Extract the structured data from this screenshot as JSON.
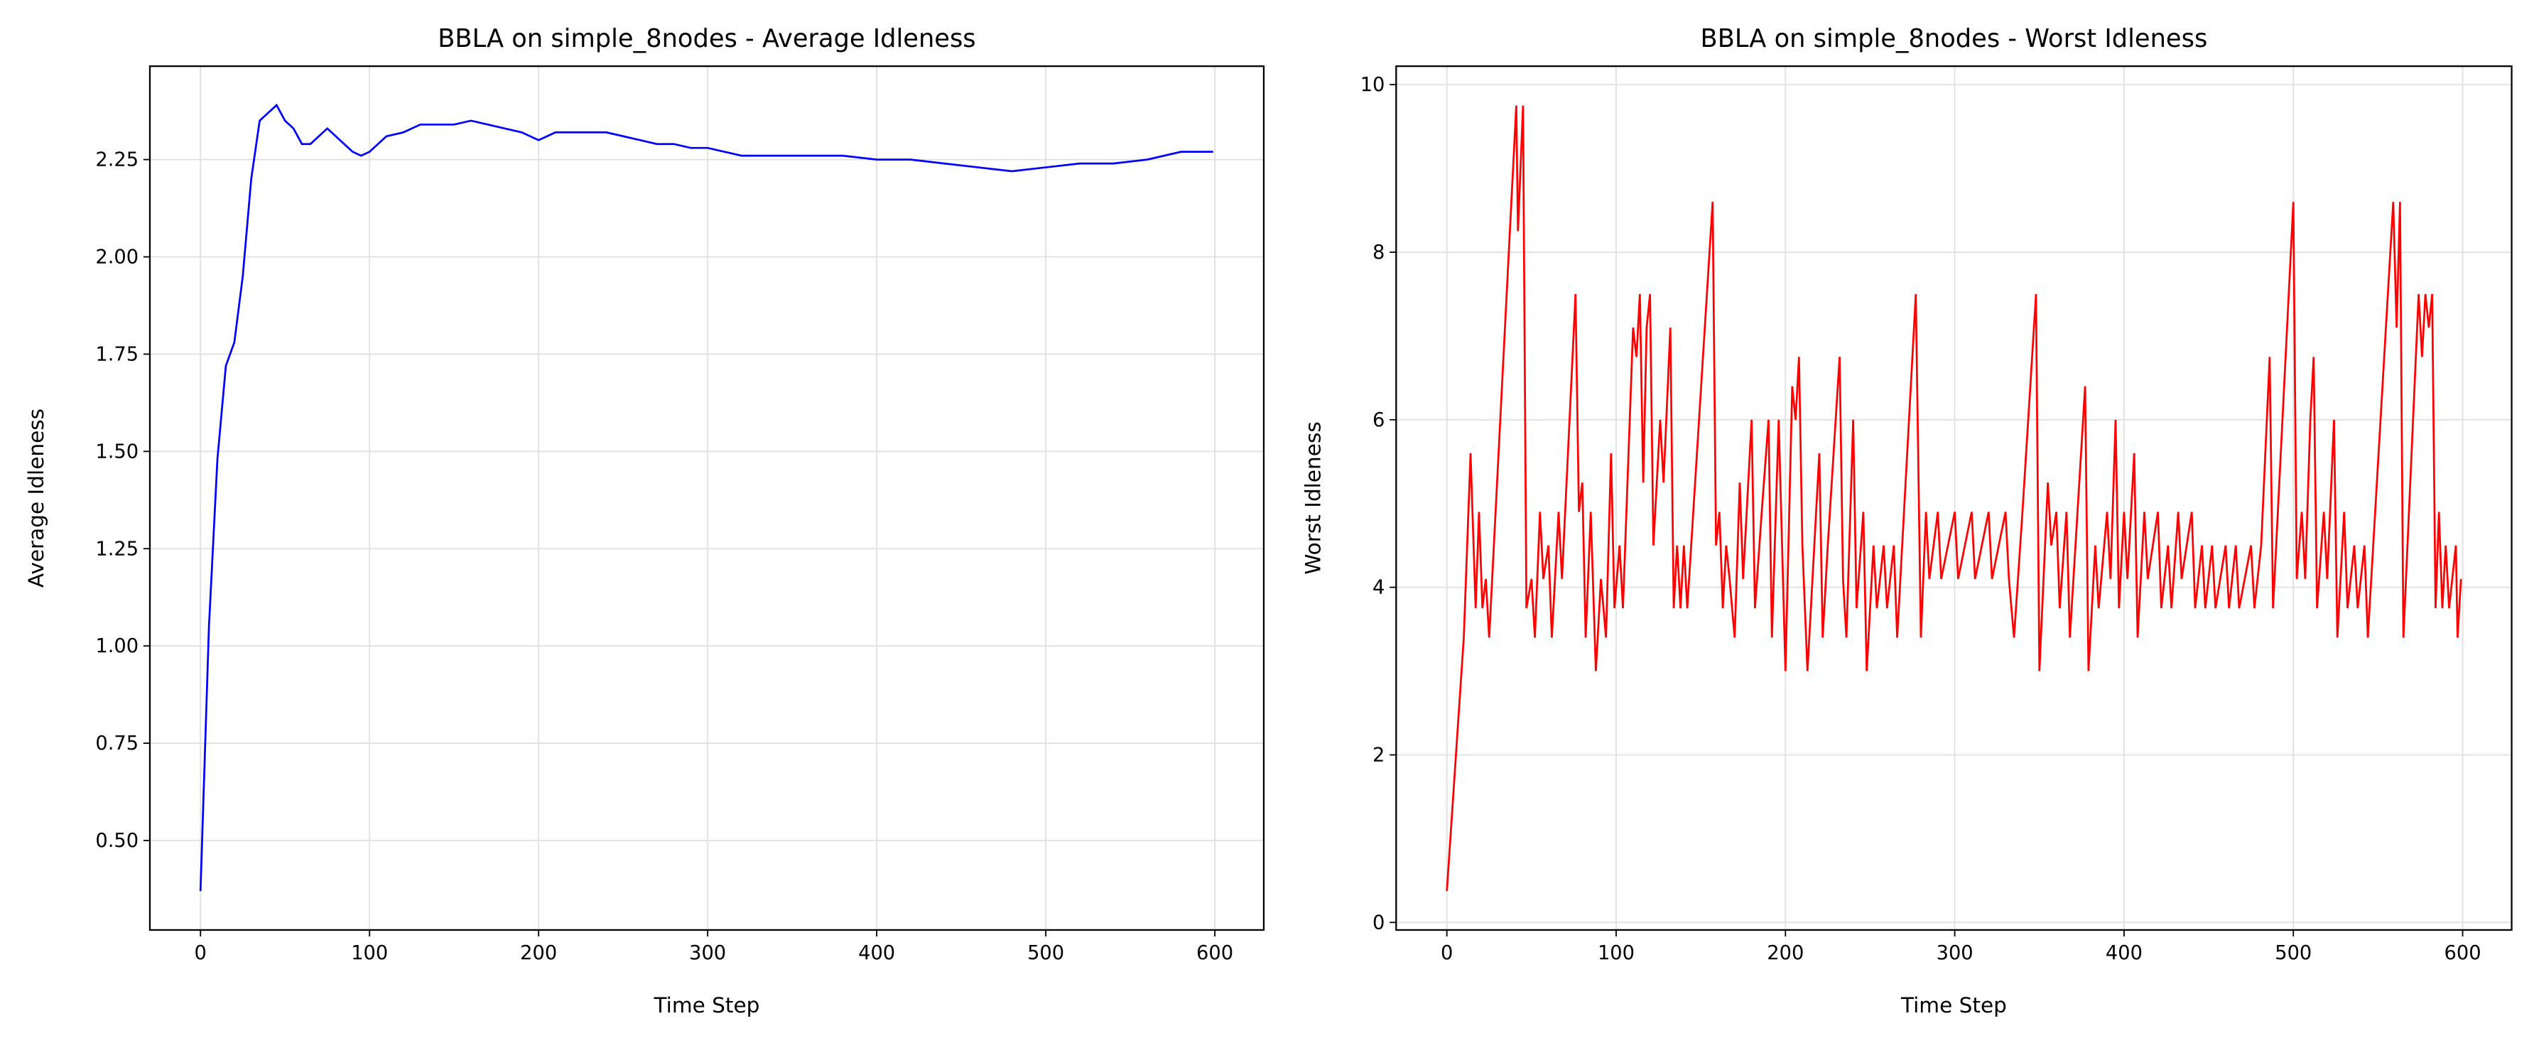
{
  "chart_data": [
    {
      "type": "line",
      "title": "BBLA on simple_8nodes - Average Idleness",
      "xlabel": "Time Step",
      "ylabel": "Average Idleness",
      "x": [
        0,
        5,
        10,
        15,
        20,
        25,
        30,
        35,
        40,
        45,
        50,
        55,
        60,
        65,
        70,
        75,
        80,
        85,
        90,
        95,
        100,
        110,
        120,
        130,
        140,
        150,
        160,
        170,
        180,
        190,
        200,
        210,
        220,
        230,
        240,
        250,
        260,
        270,
        280,
        290,
        300,
        320,
        340,
        360,
        380,
        400,
        420,
        440,
        460,
        480,
        500,
        520,
        540,
        560,
        580,
        599
      ],
      "series": [
        {
          "name": "Average Idleness",
          "color": "#0000ff",
          "values": [
            0.37,
            1.05,
            1.48,
            1.72,
            1.78,
            1.95,
            2.2,
            2.35,
            2.37,
            2.39,
            2.35,
            2.33,
            2.29,
            2.29,
            2.31,
            2.33,
            2.31,
            2.29,
            2.27,
            2.26,
            2.27,
            2.31,
            2.32,
            2.34,
            2.34,
            2.34,
            2.35,
            2.34,
            2.33,
            2.32,
            2.3,
            2.32,
            2.32,
            2.32,
            2.32,
            2.31,
            2.3,
            2.29,
            2.29,
            2.28,
            2.28,
            2.26,
            2.26,
            2.26,
            2.26,
            2.25,
            2.25,
            2.24,
            2.23,
            2.22,
            2.23,
            2.24,
            2.24,
            2.25,
            2.27,
            2.27
          ]
        }
      ],
      "xlim": [
        -29.95,
        628.95
      ],
      "xticks": [
        0,
        100,
        200,
        300,
        400,
        500,
        600
      ],
      "ylim": [
        0.27,
        2.49
      ],
      "yticks": [
        {
          "value": 0.5,
          "label": "0.50"
        },
        {
          "value": 0.75,
          "label": "0.75"
        },
        {
          "value": 1,
          "label": "1.00"
        },
        {
          "value": 1.25,
          "label": "1.25"
        },
        {
          "value": 1.5,
          "label": "1.50"
        },
        {
          "value": 1.75,
          "label": "1.75"
        },
        {
          "value": 2,
          "label": "2.00"
        },
        {
          "value": 2.25,
          "label": "2.25"
        }
      ],
      "grid": true
    },
    {
      "type": "line",
      "title": "BBLA on simple_8nodes - Worst Idleness",
      "xlabel": "Time Step",
      "ylabel": "Worst Idleness",
      "x": [
        0,
        10,
        14,
        17,
        19,
        21,
        23,
        25,
        41,
        42,
        45,
        47,
        50,
        52,
        55,
        57,
        60,
        62,
        66,
        68,
        76,
        78,
        80,
        82,
        85,
        88,
        91,
        94,
        97,
        99,
        102,
        104,
        110,
        112,
        114,
        116,
        118,
        120,
        122,
        126,
        128,
        132,
        134,
        136,
        138,
        140,
        142,
        157,
        159,
        161,
        163,
        165,
        167,
        170,
        173,
        175,
        180,
        182,
        186,
        190,
        192,
        196,
        200,
        204,
        206,
        208,
        210,
        213,
        220,
        222,
        225,
        232,
        234,
        236,
        240,
        242,
        246,
        248,
        252,
        254,
        258,
        260,
        264,
        266,
        277,
        280,
        283,
        285,
        290,
        292,
        300,
        302,
        310,
        312,
        320,
        322,
        330,
        332,
        335,
        340,
        348,
        350,
        355,
        357,
        360,
        362,
        366,
        368,
        377,
        379,
        383,
        385,
        390,
        392,
        395,
        397,
        400,
        402,
        406,
        408,
        412,
        414,
        420,
        422,
        426,
        428,
        432,
        434,
        440,
        442,
        446,
        448,
        452,
        454,
        460,
        462,
        466,
        468,
        475,
        477,
        481,
        486,
        488,
        500,
        502,
        505,
        507,
        510,
        512,
        514,
        518,
        520,
        524,
        526,
        530,
        532,
        536,
        538,
        542,
        544,
        559,
        561,
        563,
        565,
        574,
        576,
        578,
        580,
        582,
        584,
        586,
        588,
        590,
        592,
        596,
        597,
        599
      ],
      "series": [
        {
          "name": "Worst Idleness",
          "color": "#ff0000",
          "values": [
            0.375,
            3.4,
            5.6,
            3.75,
            4.9,
            3.75,
            4.1,
            3.4,
            9.75,
            8.25,
            9.75,
            3.75,
            4.1,
            3.4,
            4.9,
            4.1,
            4.5,
            3.4,
            4.9,
            4.1,
            7.5,
            4.9,
            5.25,
            3.4,
            4.9,
            3.0,
            4.1,
            3.4,
            5.6,
            3.75,
            4.5,
            3.75,
            7.1,
            6.75,
            7.5,
            5.25,
            7.1,
            7.5,
            4.5,
            6.0,
            5.25,
            7.1,
            3.75,
            4.5,
            3.75,
            4.5,
            3.75,
            8.6,
            4.5,
            4.9,
            3.75,
            4.5,
            4.1,
            3.4,
            5.25,
            4.1,
            6.0,
            3.75,
            4.9,
            6.0,
            3.4,
            6.0,
            3.0,
            6.4,
            6.0,
            6.75,
            4.5,
            3.0,
            5.6,
            3.4,
            4.5,
            6.75,
            4.1,
            3.4,
            6.0,
            3.75,
            4.9,
            3.0,
            4.5,
            3.75,
            4.5,
            3.75,
            4.5,
            3.4,
            7.5,
            3.4,
            4.9,
            4.1,
            4.9,
            4.1,
            4.9,
            4.1,
            4.9,
            4.1,
            4.9,
            4.1,
            4.9,
            4.1,
            3.4,
            4.9,
            7.5,
            3.0,
            5.25,
            4.5,
            4.9,
            3.75,
            4.9,
            3.4,
            6.4,
            3.0,
            4.5,
            3.75,
            4.9,
            4.1,
            6.0,
            3.75,
            4.9,
            4.1,
            5.6,
            3.4,
            4.9,
            4.1,
            4.9,
            3.75,
            4.5,
            3.75,
            4.9,
            4.1,
            4.9,
            3.75,
            4.5,
            3.75,
            4.5,
            3.75,
            4.5,
            3.75,
            4.5,
            3.75,
            4.5,
            3.75,
            4.5,
            6.75,
            3.75,
            8.6,
            4.1,
            4.9,
            4.1,
            6.0,
            6.75,
            3.75,
            4.9,
            4.1,
            6.0,
            3.4,
            4.9,
            3.75,
            4.5,
            3.75,
            4.5,
            3.4,
            8.6,
            7.1,
            8.6,
            3.4,
            7.5,
            6.75,
            7.5,
            7.1,
            7.5,
            3.75,
            4.9,
            3.75,
            4.5,
            3.75,
            4.5,
            3.4,
            4.1
          ]
        }
      ],
      "xlim": [
        -29.95,
        628.95
      ],
      "xticks": [
        0,
        100,
        200,
        300,
        400,
        500,
        600
      ],
      "ylim": [
        -0.09,
        10.22
      ],
      "yticks": [
        0,
        2,
        4,
        6,
        8,
        10
      ],
      "grid": true
    }
  ]
}
